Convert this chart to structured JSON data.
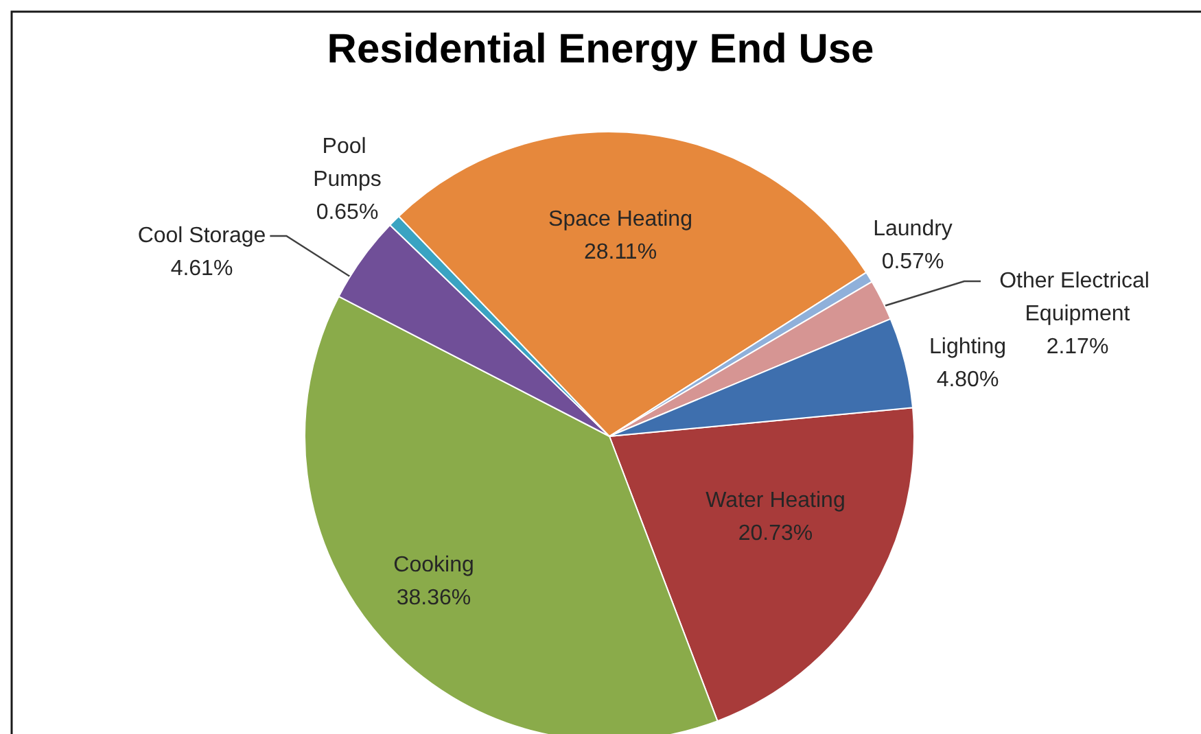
{
  "chart_data": {
    "type": "pie",
    "title": "Residential Energy End Use",
    "categories": [
      "Water Heating",
      "Cooking",
      "Cool Storage",
      "Pool Pumps",
      "Space Heating",
      "Laundry",
      "Other Electrical Equipment",
      "Lighting"
    ],
    "values": [
      20.73,
      38.36,
      4.61,
      0.65,
      28.11,
      0.57,
      2.17,
      4.8
    ],
    "colors": [
      "#a83b3a",
      "#8aab4a",
      "#704f98",
      "#3aa3c2",
      "#e6883c",
      "#8fb0da",
      "#d69593",
      "#3e6fae"
    ],
    "value_labels": [
      "20.73%",
      "38.36%",
      "4.61%",
      "0.65%",
      "28.11%",
      "0.57%",
      "2.17%",
      "4.80%"
    ]
  }
}
